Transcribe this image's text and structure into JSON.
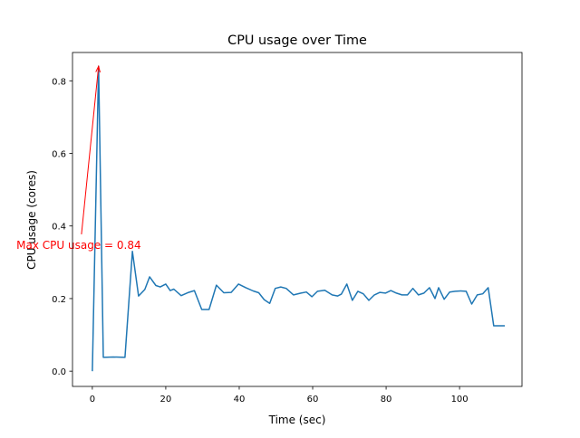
{
  "chart_data": {
    "type": "line",
    "title": "CPU usage over Time",
    "xlabel": "Time (sec)",
    "ylabel": "CPU usage (cores)",
    "xlim": [
      -5.4,
      117
    ],
    "ylim": [
      -0.042,
      0.878
    ],
    "xticks": [
      0,
      20,
      40,
      60,
      80,
      100
    ],
    "yticks": [
      0.0,
      0.2,
      0.4,
      0.6,
      0.8
    ],
    "xtick_labels": [
      "0",
      "20",
      "40",
      "60",
      "80",
      "100"
    ],
    "ytick_labels": [
      "0.0",
      "0.2",
      "0.4",
      "0.6",
      "0.8"
    ],
    "grid": false,
    "series": [
      {
        "name": "CPU usage",
        "color": "#1f77b4",
        "x": [
          0,
          1.7,
          3.0,
          5.7,
          8.9,
          10.9,
          12.6,
          14.3,
          15.6,
          17.3,
          18.5,
          20,
          21.2,
          22.2,
          24.2,
          26.2,
          27.8,
          29.8,
          31.8,
          33.8,
          35.8,
          37.8,
          39.8,
          41.8,
          43.8,
          45.3,
          46.8,
          48.3,
          49.8,
          51.3,
          52.8,
          54.8,
          56.8,
          58.3,
          59.8,
          61.3,
          63.3,
          65.3,
          66.8,
          67.8,
          69.3,
          70.8,
          72.3,
          73.8,
          75.3,
          76.8,
          78.3,
          79.8,
          81.3,
          82.8,
          84.3,
          85.8,
          87.3,
          88.8,
          90.3,
          91.8,
          93.3,
          94.3,
          95.8,
          97.3,
          98.8,
          100.3,
          101.8,
          103.3,
          104.8,
          106.3,
          107.8,
          109.3,
          110.8,
          112.3
        ],
        "values": [
          0.0,
          0.84,
          0.038,
          0.039,
          0.038,
          0.33,
          0.207,
          0.225,
          0.26,
          0.236,
          0.232,
          0.24,
          0.222,
          0.226,
          0.208,
          0.217,
          0.222,
          0.17,
          0.17,
          0.237,
          0.216,
          0.217,
          0.24,
          0.23,
          0.221,
          0.216,
          0.197,
          0.187,
          0.228,
          0.232,
          0.228,
          0.21,
          0.215,
          0.218,
          0.205,
          0.22,
          0.223,
          0.21,
          0.207,
          0.212,
          0.24,
          0.195,
          0.22,
          0.213,
          0.195,
          0.21,
          0.217,
          0.215,
          0.222,
          0.215,
          0.21,
          0.21,
          0.228,
          0.21,
          0.215,
          0.23,
          0.2,
          0.23,
          0.198,
          0.218,
          0.22,
          0.221,
          0.22,
          0.185,
          0.21,
          0.213,
          0.23,
          0.125,
          0.125,
          0.125
        ]
      }
    ],
    "annotation": {
      "text": "Max CPU usage = 0.84",
      "color": "#ff0000",
      "xy": [
        1.7,
        0.84
      ],
      "xytext": [
        -3.7,
        0.347
      ]
    }
  }
}
